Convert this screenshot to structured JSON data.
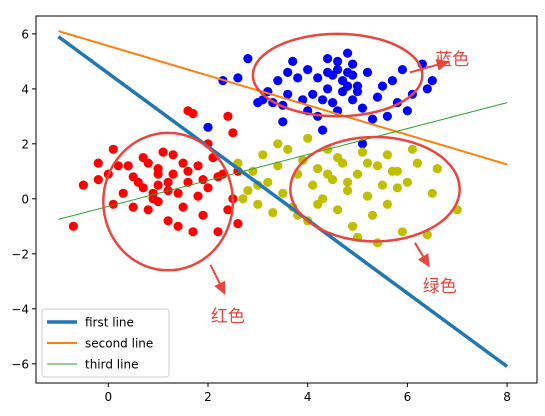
{
  "chart_data": {
    "type": "scatter",
    "title": "",
    "xlabel": "",
    "ylabel": "",
    "xlim": [
      -1.45,
      8.6
    ],
    "ylim": [
      -6.7,
      6.65
    ],
    "x_ticks": [
      0,
      2,
      4,
      6,
      8
    ],
    "y_ticks": [
      -6,
      -4,
      -2,
      0,
      2,
      4,
      6
    ],
    "x_tick_labels": [
      "0",
      "2",
      "4",
      "6",
      "8"
    ],
    "y_tick_labels": [
      "−6",
      "−4",
      "−2",
      "0",
      "2",
      "4",
      "6"
    ],
    "grid": false,
    "legend": {
      "position": "lower-left",
      "entries": [
        {
          "label": "first line",
          "color": "#1f77b4"
        },
        {
          "label": "second line",
          "color": "#ff7f0e"
        },
        {
          "label": "third line",
          "color": "#2ca02c"
        }
      ]
    },
    "lines": [
      {
        "name": "first line",
        "color": "#1f77b4",
        "width": 3.5,
        "x": [
          -1,
          8
        ],
        "y": [
          5.9,
          -6.1
        ]
      },
      {
        "name": "second line",
        "color": "#ff7f0e",
        "width": 2,
        "x": [
          -1,
          8
        ],
        "y": [
          6.1,
          1.25
        ]
      },
      {
        "name": "third line",
        "color": "#2ca02c",
        "width": 1,
        "x": [
          -1,
          8
        ],
        "y": [
          -0.75,
          3.5
        ]
      }
    ],
    "scatter_series": [
      {
        "color": "#0000ff",
        "points": [
          [
            2.3,
            4.3
          ],
          [
            2.6,
            4.4
          ],
          [
            2.8,
            5.1
          ],
          [
            3.1,
            3.6
          ],
          [
            3.2,
            3.9
          ],
          [
            3.3,
            3.5
          ],
          [
            3.4,
            4.3
          ],
          [
            3.5,
            3.4
          ],
          [
            3.6,
            4.6
          ],
          [
            3.6,
            3.8
          ],
          [
            3.7,
            5.0
          ],
          [
            3.8,
            4.4
          ],
          [
            3.9,
            3.6
          ],
          [
            4.0,
            4.7
          ],
          [
            4.0,
            3.2
          ],
          [
            4.1,
            3.8
          ],
          [
            4.2,
            4.4
          ],
          [
            4.2,
            3.0
          ],
          [
            4.3,
            3.6
          ],
          [
            4.4,
            5.1
          ],
          [
            4.4,
            4.0
          ],
          [
            4.5,
            4.5
          ],
          [
            4.5,
            3.5
          ],
          [
            4.6,
            5.0
          ],
          [
            4.6,
            3.2
          ],
          [
            4.7,
            4.3
          ],
          [
            4.7,
            3.9
          ],
          [
            4.8,
            5.3
          ],
          [
            4.8,
            4.6
          ],
          [
            4.9,
            3.6
          ],
          [
            4.9,
            4.9
          ],
          [
            5.0,
            4.1
          ],
          [
            5.1,
            3.3
          ],
          [
            5.0,
            3.9
          ],
          [
            5.2,
            4.6
          ],
          [
            5.3,
            2.9
          ],
          [
            5.4,
            3.7
          ],
          [
            5.5,
            4.1
          ],
          [
            5.6,
            3.0
          ],
          [
            5.7,
            4.3
          ],
          [
            5.8,
            3.5
          ],
          [
            5.9,
            4.7
          ],
          [
            6.0,
            3.2
          ],
          [
            6.1,
            3.8
          ],
          [
            6.3,
            4.9
          ],
          [
            6.4,
            4.0
          ],
          [
            6.5,
            4.3
          ],
          [
            4.4,
            4.6
          ],
          [
            4.6,
            4.7
          ],
          [
            4.8,
            4.1
          ],
          [
            3.0,
            3.5
          ],
          [
            2.0,
            2.6
          ],
          [
            3.5,
            2.8
          ],
          [
            4.3,
            2.5
          ],
          [
            5.1,
            2.0
          ],
          [
            4.9,
            4.5
          ]
        ]
      },
      {
        "color": "#ff0000",
        "points": [
          [
            -0.7,
            -1.0
          ],
          [
            -0.5,
            0.5
          ],
          [
            -0.2,
            0.7
          ],
          [
            -0.2,
            1.3
          ],
          [
            0.0,
            0.9
          ],
          [
            0.1,
            -0.2
          ],
          [
            0.1,
            1.8
          ],
          [
            0.3,
            0.2
          ],
          [
            0.4,
            1.2
          ],
          [
            0.5,
            -0.3
          ],
          [
            0.6,
            0.6
          ],
          [
            0.7,
            1.5
          ],
          [
            0.8,
            -0.4
          ],
          [
            0.9,
            0.0
          ],
          [
            1.0,
            0.5
          ],
          [
            1.0,
            1.1
          ],
          [
            1.1,
            1.7
          ],
          [
            1.2,
            0.3
          ],
          [
            1.2,
            -0.8
          ],
          [
            1.3,
            0.9
          ],
          [
            1.4,
            0.2
          ],
          [
            1.5,
            -0.3
          ],
          [
            1.5,
            1.3
          ],
          [
            1.6,
            0.6
          ],
          [
            1.7,
            -1.2
          ],
          [
            1.8,
            0.1
          ],
          [
            1.8,
            1.2
          ],
          [
            1.9,
            -0.6
          ],
          [
            2.0,
            0.4
          ],
          [
            2.1,
            1.5
          ],
          [
            2.2,
            -1.2
          ],
          [
            2.3,
            0.9
          ],
          [
            2.4,
            -0.4
          ],
          [
            2.5,
            0.0
          ],
          [
            2.6,
            1.0
          ],
          [
            2.6,
            -0.9
          ],
          [
            1.6,
            3.2
          ],
          [
            2.5,
            2.4
          ],
          [
            2.0,
            2.0
          ],
          [
            1.0,
            0.9
          ],
          [
            0.8,
            1.3
          ],
          [
            1.3,
            1.6
          ],
          [
            1.6,
            1.0
          ],
          [
            2.2,
            0.8
          ],
          [
            0.5,
            0.8
          ],
          [
            0.2,
            1.2
          ],
          [
            1.0,
            -0.1
          ],
          [
            1.4,
            -1.0
          ],
          [
            0.9,
            0.2
          ],
          [
            1.7,
            3.1
          ],
          [
            2.4,
            3.0
          ],
          [
            1.9,
            0.7
          ],
          [
            1.2,
            0.6
          ],
          [
            0.7,
            0.4
          ]
        ]
      },
      {
        "color": "#bfbf00",
        "points": [
          [
            2.6,
            1.3
          ],
          [
            2.8,
            0.3
          ],
          [
            2.9,
            1.0
          ],
          [
            3.0,
            -0.2
          ],
          [
            3.1,
            1.6
          ],
          [
            3.2,
            0.6
          ],
          [
            3.3,
            -0.5
          ],
          [
            3.4,
            1.2
          ],
          [
            3.5,
            0.2
          ],
          [
            3.6,
            1.8
          ],
          [
            3.7,
            -0.3
          ],
          [
            3.8,
            0.9
          ],
          [
            3.9,
            1.4
          ],
          [
            4.0,
            -0.8
          ],
          [
            4.1,
            0.5
          ],
          [
            4.2,
            1.1
          ],
          [
            4.3,
            0.0
          ],
          [
            4.4,
            1.8
          ],
          [
            4.5,
            0.7
          ],
          [
            4.6,
            -0.4
          ],
          [
            4.7,
            1.3
          ],
          [
            4.8,
            0.3
          ],
          [
            4.9,
            -1.0
          ],
          [
            5.0,
            0.9
          ],
          [
            5.1,
            1.7
          ],
          [
            5.2,
            0.1
          ],
          [
            5.3,
            -0.6
          ],
          [
            5.4,
            1.2
          ],
          [
            5.5,
            0.5
          ],
          [
            5.6,
            -0.2
          ],
          [
            5.7,
            1.0
          ],
          [
            5.8,
            0.4
          ],
          [
            5.9,
            -1.2
          ],
          [
            6.0,
            0.6
          ],
          [
            6.2,
            1.3
          ],
          [
            6.4,
            -1.3
          ],
          [
            6.6,
            1.1
          ],
          [
            7.0,
            -0.4
          ],
          [
            4.0,
            2.2
          ],
          [
            4.6,
            1.5
          ],
          [
            5.0,
            -1.4
          ],
          [
            5.4,
            -1.6
          ],
          [
            3.4,
            2.0
          ],
          [
            4.8,
            0.6
          ],
          [
            5.2,
            1.3
          ],
          [
            3.8,
            -0.6
          ],
          [
            4.4,
            0.9
          ],
          [
            5.8,
            1.0
          ],
          [
            6.5,
            0.2
          ],
          [
            3.0,
            0.5
          ],
          [
            2.7,
            0.0
          ],
          [
            4.2,
            -0.2
          ],
          [
            5.6,
            1.6
          ],
          [
            6.1,
            1.8
          ]
        ]
      }
    ],
    "annotations": [
      {
        "text": "蓝色",
        "color": "#e8453c",
        "at": [
          6.9,
          5.05
        ],
        "ellipse_center": [
          4.6,
          4.5
        ],
        "ellipse_rx": 1.7,
        "ellipse_ry": 1.5
      },
      {
        "text": "红色",
        "color": "#e8453c",
        "at": [
          2.4,
          -4.3
        ],
        "ellipse_center": [
          1.2,
          -0.1
        ],
        "ellipse_rx": 1.3,
        "ellipse_ry": 2.5
      },
      {
        "text": "绿色",
        "color": "#e8453c",
        "at": [
          6.65,
          -3.2
        ],
        "ellipse_center": [
          5.35,
          0.35
        ],
        "ellipse_rx": 1.7,
        "ellipse_ry": 1.9
      }
    ]
  }
}
